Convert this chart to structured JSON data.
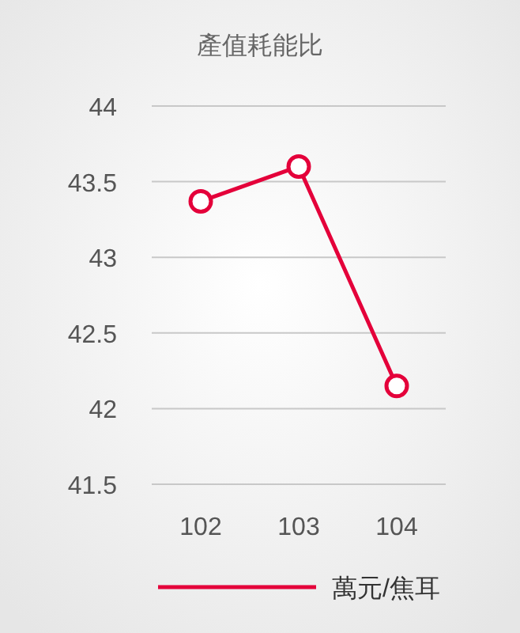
{
  "chart_data": {
    "type": "line",
    "title": "產值耗能比",
    "categories": [
      "102",
      "103",
      "104"
    ],
    "series": [
      {
        "name": "萬元/焦耳",
        "color": "#e4003a",
        "values": [
          43.37,
          43.6,
          42.15
        ]
      }
    ],
    "ylim": [
      41.5,
      44
    ],
    "yticks": [
      41.5,
      42,
      42.5,
      43,
      43.5,
      44
    ],
    "grid": "y",
    "legend": "bottom",
    "marker": "circle",
    "line_style": "solid"
  }
}
